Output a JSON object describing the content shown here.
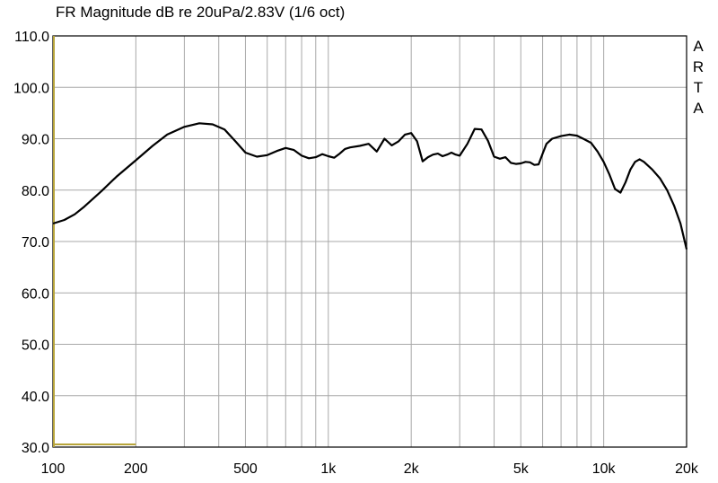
{
  "title": "FR Magnitude dB re 20uPa/2.83V (1/6 oct)",
  "brand_letters": [
    "A",
    "R",
    "T",
    "A"
  ],
  "colors": {
    "curve": "#000000",
    "grid": "#a8a8a8",
    "frame": "#000000",
    "marker": "#b8a53a"
  },
  "chart_data": {
    "type": "line",
    "title": "FR Magnitude dB re 20uPa/2.83V (1/6 oct)",
    "xscale": "log",
    "xlim": [
      100,
      20000
    ],
    "ylim": [
      30,
      110
    ],
    "grid": true,
    "x_tick_labels": [
      {
        "value": 100,
        "label": "100"
      },
      {
        "value": 200,
        "label": "200"
      },
      {
        "value": 500,
        "label": "500"
      },
      {
        "value": 1000,
        "label": "1k"
      },
      {
        "value": 2000,
        "label": "2k"
      },
      {
        "value": 5000,
        "label": "5k"
      },
      {
        "value": 10000,
        "label": "10k"
      },
      {
        "value": 20000,
        "label": "20k"
      }
    ],
    "y_tick_labels": [
      "30.0",
      "40.0",
      "50.0",
      "60.0",
      "70.0",
      "80.0",
      "90.0",
      "100.0",
      "110.0"
    ],
    "series": [
      {
        "x": [
          100,
          110,
          120,
          130,
          150,
          170,
          200,
          230,
          260,
          300,
          340,
          380,
          420,
          460,
          500,
          550,
          600,
          650,
          700,
          750,
          800,
          850,
          900,
          950,
          1000,
          1050,
          1100,
          1150,
          1200,
          1300,
          1400,
          1500,
          1600,
          1700,
          1800,
          1900,
          2000,
          2100,
          2200,
          2300,
          2400,
          2500,
          2600,
          2700,
          2800,
          2900,
          3000,
          3200,
          3400,
          3600,
          3800,
          4000,
          4200,
          4400,
          4600,
          4800,
          5000,
          5200,
          5400,
          5600,
          5800,
          6000,
          6200,
          6500,
          7000,
          7500,
          8000,
          8500,
          9000,
          9500,
          10000,
          10500,
          11000,
          11500,
          12000,
          12500,
          13000,
          13500,
          14000,
          15000,
          16000,
          17000,
          18000,
          19000,
          20000
        ],
        "y": [
          73.5,
          74.2,
          75.3,
          76.8,
          79.8,
          82.6,
          85.8,
          88.6,
          90.8,
          92.3,
          93.0,
          92.8,
          91.8,
          89.5,
          87.3,
          86.5,
          86.8,
          87.6,
          88.2,
          87.8,
          86.7,
          86.2,
          86.4,
          87.0,
          86.6,
          86.3,
          87.1,
          88.0,
          88.3,
          88.6,
          89.0,
          87.5,
          90.0,
          88.7,
          89.5,
          90.8,
          91.1,
          89.5,
          85.6,
          86.4,
          86.9,
          87.1,
          86.6,
          86.9,
          87.3,
          86.9,
          86.7,
          89.0,
          91.9,
          91.8,
          89.6,
          86.5,
          86.1,
          86.4,
          85.3,
          85.1,
          85.2,
          85.5,
          85.4,
          84.9,
          85.0,
          87.1,
          89.0,
          90.0,
          90.5,
          90.8,
          90.6,
          89.9,
          89.2,
          87.5,
          85.5,
          83.0,
          80.2,
          79.5,
          81.5,
          84.0,
          85.5,
          86.0,
          85.5,
          84.0,
          82.3,
          80.0,
          77.0,
          73.5,
          68.5
        ]
      }
    ],
    "markers": [
      {
        "x_from": 100,
        "x_to": 200,
        "y": 30
      }
    ]
  }
}
